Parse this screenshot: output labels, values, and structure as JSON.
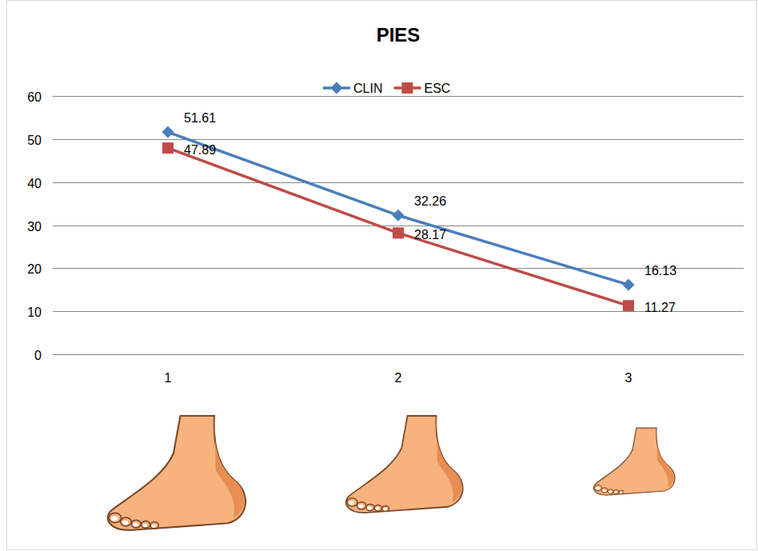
{
  "chart_data": {
    "type": "line",
    "title": "PIES",
    "categories": [
      "1",
      "2",
      "3"
    ],
    "series": [
      {
        "name": "CLIN",
        "color": "#4a7ebb",
        "marker": "diamond",
        "values": [
          51.61,
          32.26,
          16.13
        ]
      },
      {
        "name": "ESC",
        "color": "#be4b48",
        "marker": "square",
        "values": [
          47.89,
          28.17,
          11.27
        ]
      }
    ],
    "ylim": [
      0,
      60
    ],
    "yticks": [
      0,
      10,
      20,
      30,
      40,
      50,
      60
    ],
    "grid": true,
    "legend": "top",
    "data_labels": true
  }
}
